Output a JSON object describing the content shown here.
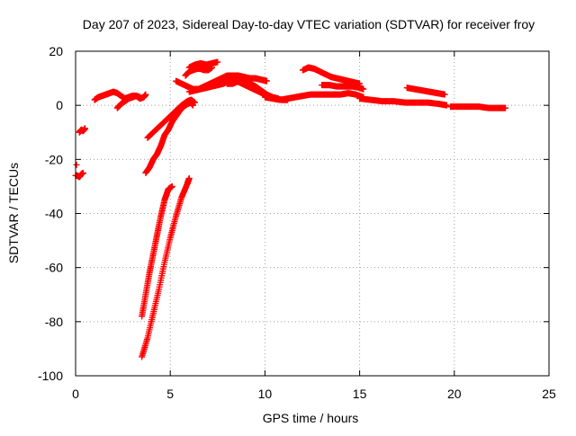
{
  "chart_data": {
    "type": "scatter",
    "title": "Day 207 of 2023, Sidereal Day-to-day VTEC variation (SDTVAR) for receiver froy",
    "xlabel": "GPS time / hours",
    "ylabel": "SDTVAR / TECUs",
    "xlim": [
      0,
      25
    ],
    "ylim": [
      -100,
      20
    ],
    "xticks": [
      0,
      5,
      10,
      15,
      20,
      25
    ],
    "yticks": [
      -100,
      -80,
      -60,
      -40,
      -20,
      0,
      20
    ],
    "xtick_labels": [
      "0",
      "5",
      "10",
      "15",
      "20",
      "25"
    ],
    "ytick_labels": [
      "-100",
      "-80",
      "-60",
      "-40",
      "-20",
      "0",
      "20"
    ],
    "grid": true,
    "marker": "+",
    "color": "#ff0000",
    "series": [
      {
        "x": [
          0.0,
          0.1,
          0.2,
          0.3,
          0.4
        ],
        "y": [
          -26,
          -26,
          -26.5,
          -25.5,
          -25
        ]
      },
      {
        "x": [
          0.05
        ],
        "y": [
          -22
        ]
      },
      {
        "x": [
          0.2,
          0.3,
          0.4,
          0.5
        ],
        "y": [
          -10,
          -9,
          -9.5,
          -8.5
        ]
      },
      {
        "x": [
          1.0,
          1.2,
          1.4,
          1.6,
          1.8,
          2.0,
          2.2,
          2.4,
          2.6,
          2.8,
          3.0,
          3.2,
          3.4,
          3.6,
          3.7
        ],
        "y": [
          2,
          3,
          3.5,
          4,
          4.5,
          5,
          4.5,
          3.5,
          2.5,
          3,
          3.5,
          3.5,
          2.5,
          3,
          4
        ]
      },
      {
        "x": [
          2.2,
          2.4,
          2.6,
          2.8,
          3.0,
          3.2,
          3.4
        ],
        "y": [
          -1,
          0.5,
          1.5,
          2.5,
          3,
          3.5,
          3
        ]
      },
      {
        "x": [
          3.7,
          3.9,
          4.1,
          4.3,
          4.5,
          4.7,
          4.9,
          5.1,
          5.3,
          5.5,
          5.7,
          5.9,
          6.1,
          6.2
        ],
        "y": [
          -25,
          -23,
          -20,
          -18,
          -15,
          -11,
          -9,
          -6,
          -4,
          -2,
          -0.5,
          0.5,
          1,
          0
        ]
      },
      {
        "x": [
          3.8,
          4.1,
          4.4,
          4.7,
          5.0,
          5.3,
          5.6,
          5.9,
          6.1,
          6.3
        ],
        "y": [
          -12,
          -10,
          -8,
          -6,
          -4,
          -2,
          0,
          1.5,
          2,
          1
        ]
      },
      {
        "x": [
          3.5,
          3.7,
          3.9,
          4.1,
          4.3,
          4.5,
          4.7,
          4.9,
          5.1
        ],
        "y": [
          -78,
          -70,
          -62,
          -55,
          -48,
          -41,
          -35,
          -31,
          -30
        ]
      },
      {
        "x": [
          3.5,
          3.8,
          4.1,
          4.4,
          4.7,
          5.0,
          5.3,
          5.6,
          5.9,
          6.0
        ],
        "y": [
          -93,
          -86,
          -77,
          -68,
          -58,
          -49,
          -41,
          -34,
          -29,
          -27
        ]
      },
      {
        "x": [
          5.3,
          5.6,
          5.9,
          6.2,
          6.5,
          6.8,
          7.1,
          7.4,
          7.7,
          8.0,
          8.3,
          8.6,
          8.9,
          9.2,
          9.5,
          9.8,
          10.1
        ],
        "y": [
          9,
          8,
          7,
          6,
          6,
          7,
          8,
          9,
          10,
          11,
          11,
          11,
          10.5,
          10,
          10,
          9.5,
          9
        ]
      },
      {
        "x": [
          6.0,
          6.3,
          6.6,
          6.9,
          7.2,
          7.5
        ],
        "y": [
          14,
          15,
          15.5,
          15,
          15.5,
          16
        ]
      },
      {
        "x": [
          5.8,
          6.0,
          6.2,
          6.4,
          6.6,
          6.8,
          7.0,
          7.2
        ],
        "y": [
          11,
          12.5,
          13,
          13.5,
          13.5,
          13,
          13,
          14
        ]
      },
      {
        "x": [
          6.0,
          6.3,
          6.6,
          6.9,
          7.2,
          7.5,
          7.8,
          8.1,
          8.4
        ],
        "y": [
          5,
          5.5,
          6,
          6.5,
          7,
          7.5,
          8,
          9,
          9
        ]
      },
      {
        "x": [
          7.6,
          7.9,
          8.2,
          8.5,
          8.8,
          9.1,
          9.4,
          9.7,
          10.0,
          10.3,
          10.6,
          10.9,
          11.2
        ],
        "y": [
          9,
          9.5,
          10,
          9,
          8,
          7,
          6,
          5,
          4,
          3,
          2.5,
          2,
          2
        ]
      },
      {
        "x": [
          8.0,
          8.3,
          8.6,
          8.9,
          9.2,
          9.5,
          9.8,
          10.1,
          10.4,
          10.7
        ],
        "y": [
          8,
          8,
          9,
          9,
          8,
          7,
          5.5,
          4,
          3,
          2.5
        ]
      },
      {
        "x": [
          10.0,
          10.4,
          10.8,
          11.2,
          11.6,
          12.0,
          12.4,
          12.8,
          13.2,
          13.6,
          14.0,
          14.4,
          14.8,
          15.2
        ],
        "y": [
          3,
          2.5,
          2,
          2.5,
          3,
          3.5,
          4,
          4,
          4,
          4,
          4,
          4.5,
          4,
          3
        ]
      },
      {
        "x": [
          12.0,
          12.3,
          12.6,
          12.9,
          13.2,
          13.5,
          13.8,
          14.1,
          14.4,
          14.7,
          15.0
        ],
        "y": [
          13,
          14,
          13.5,
          12.5,
          11.5,
          10.5,
          10,
          9.5,
          9,
          8.5,
          8
        ]
      },
      {
        "x": [
          13.0,
          13.4,
          13.8,
          14.2,
          14.6,
          15.0,
          15.2
        ],
        "y": [
          7.5,
          7.5,
          7,
          7,
          7,
          6.5,
          6
        ]
      },
      {
        "x": [
          15.0,
          15.6,
          16.2,
          16.8,
          17.4,
          18.0,
          18.6,
          19.2,
          19.6
        ],
        "y": [
          2.5,
          2,
          1.5,
          1.5,
          1,
          1,
          1,
          0.5,
          0
        ]
      },
      {
        "x": [
          17.5,
          17.9,
          18.3,
          18.7,
          19.1,
          19.5
        ],
        "y": [
          6.5,
          6,
          5.5,
          5,
          4.5,
          4
        ]
      },
      {
        "x": [
          19.8,
          20.3,
          20.8,
          21.3,
          21.8,
          22.3,
          22.7
        ],
        "y": [
          -0.5,
          -0.5,
          -0.5,
          -0.5,
          -1,
          -1,
          -1
        ]
      }
    ]
  }
}
